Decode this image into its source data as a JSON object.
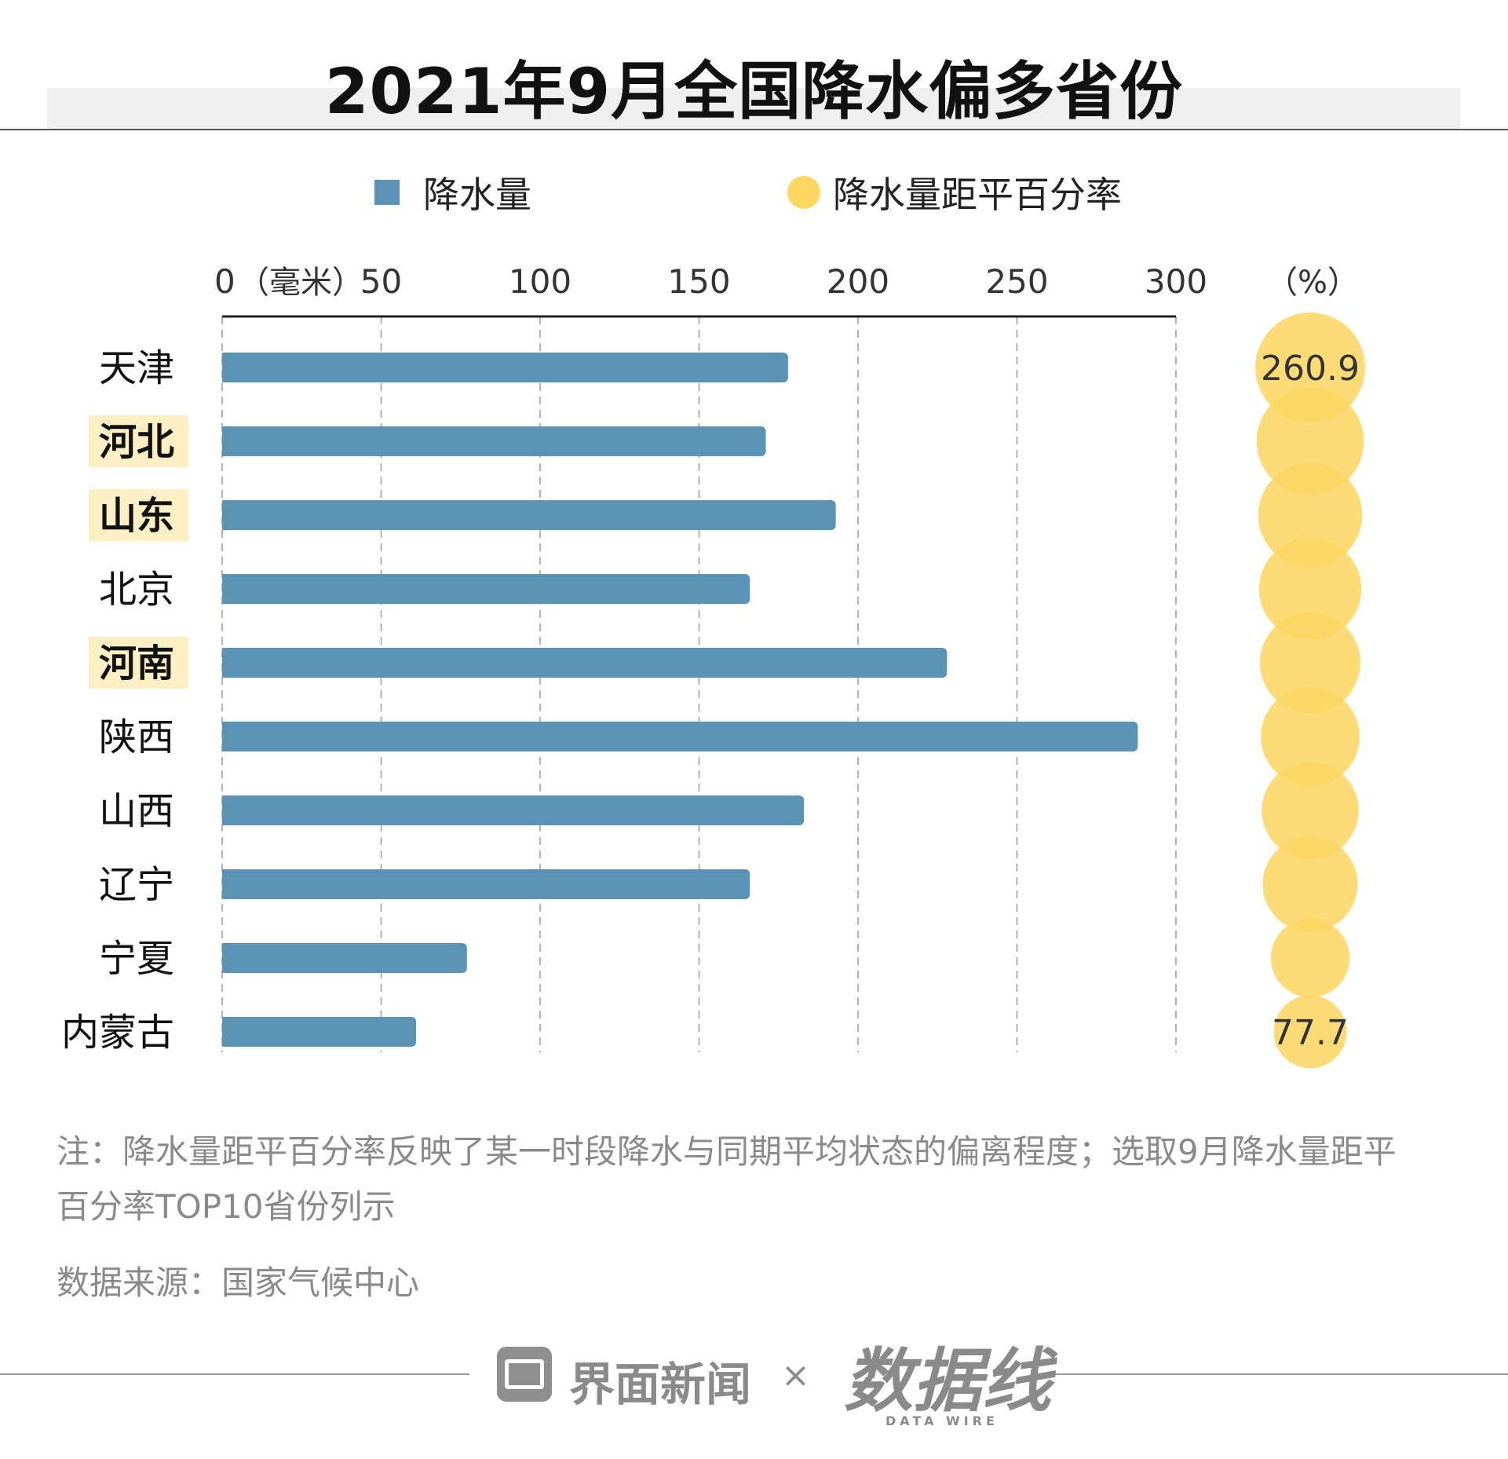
{
  "title": "2021年9月全国降水偏多省份",
  "legend": {
    "bar": {
      "label": "降水量",
      "color": "#5a93b5"
    },
    "bubble": {
      "label": "降水量距平百分率",
      "color": "#fdd663"
    }
  },
  "chart_data": {
    "type": "bar",
    "orientation": "horizontal",
    "title": "2021年9月全国降水偏多省份",
    "xlabel": "（毫米）",
    "xlim": [
      0,
      300
    ],
    "xticks": [
      0,
      50,
      100,
      150,
      200,
      250,
      300
    ],
    "unit_label": "（毫米）",
    "percent_label": "（%）",
    "categories": [
      "天津",
      "河北",
      "山东",
      "北京",
      "河南",
      "陕西",
      "山西",
      "辽宁",
      "宁夏",
      "内蒙古"
    ],
    "highlighted": [
      "河北",
      "山东",
      "河南"
    ],
    "highlight_color": "#fdefc4",
    "series": [
      {
        "name": "降水量",
        "type": "bar",
        "color": "#5a93b5",
        "values": [
          178,
          171,
          193,
          166,
          228,
          288,
          183,
          166,
          77,
          61
        ]
      },
      {
        "name": "降水量距平百分率",
        "type": "bubble",
        "color": "#fdd663",
        "values": [
          260.9,
          245,
          225,
          215,
          205,
          195,
          185,
          175,
          100,
          77.7
        ]
      }
    ],
    "bubble_value_labels": [
      {
        "category": "天津",
        "text": "260.9"
      },
      {
        "category": "内蒙古",
        "text": "77.7"
      }
    ]
  },
  "note": "注：降水量距平百分率反映了某一时段降水与同期平均状态的偏离程度；选取9月降水量距平百分率TOP10省份列示",
  "source": "数据来源：国家气候中心",
  "footer": {
    "brand1": "界面新闻",
    "separator": "×",
    "brand2": "数据线",
    "brand2_sub": "DATA WIRE"
  }
}
